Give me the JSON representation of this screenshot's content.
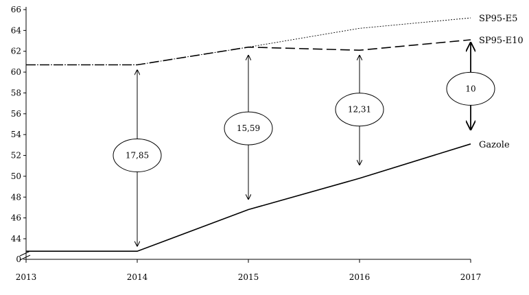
{
  "chart_data": {
    "type": "line",
    "title": "",
    "xlabel": "",
    "ylabel": "",
    "x": [
      2013,
      2014,
      2015,
      2016,
      2017
    ],
    "x_tick_labels": [
      "2013",
      "2014",
      "2015",
      "2016",
      "2017"
    ],
    "y_tick_labels": [
      "0",
      "44",
      "46",
      "48",
      "50",
      "52",
      "54",
      "56",
      "58",
      "60",
      "62",
      "64",
      "66"
    ],
    "y_axis_break": true,
    "ylim": [
      42,
      66
    ],
    "grid": false,
    "series": [
      {
        "name": "SP95-E5",
        "style": "dotted",
        "points": [
          [
            2013,
            60.7
          ],
          [
            2014,
            60.7
          ],
          [
            2015,
            62.4
          ],
          [
            2016,
            64.2
          ],
          [
            2017,
            65.2
          ]
        ]
      },
      {
        "name": "SP95-E10",
        "style": "dashed",
        "points": [
          [
            2013,
            60.7
          ],
          [
            2014,
            60.7
          ],
          [
            2015,
            62.4
          ],
          [
            2016,
            62.1
          ],
          [
            2017,
            63.1
          ]
        ]
      },
      {
        "name": "Gazole",
        "style": "solid",
        "points": [
          [
            2013,
            42.8
          ],
          [
            2014,
            42.8
          ],
          [
            2015,
            46.8
          ],
          [
            2016,
            49.8
          ],
          [
            2017,
            53.1
          ]
        ]
      }
    ],
    "annotations": [
      {
        "label": "17,85",
        "x": 2014,
        "y_top": 60.2,
        "y_bottom": 43.3,
        "y_label": 52.0
      },
      {
        "label": "15,59",
        "x": 2015,
        "y_top": 61.6,
        "y_bottom": 47.8,
        "y_label": 54.6
      },
      {
        "label": "12,31",
        "x": 2016,
        "y_top": 61.6,
        "y_bottom": 51.1,
        "y_label": 56.4
      },
      {
        "label": "10",
        "x": 2017,
        "y_top": 62.8,
        "y_bottom": 54.5,
        "y_label": 58.4
      }
    ]
  }
}
